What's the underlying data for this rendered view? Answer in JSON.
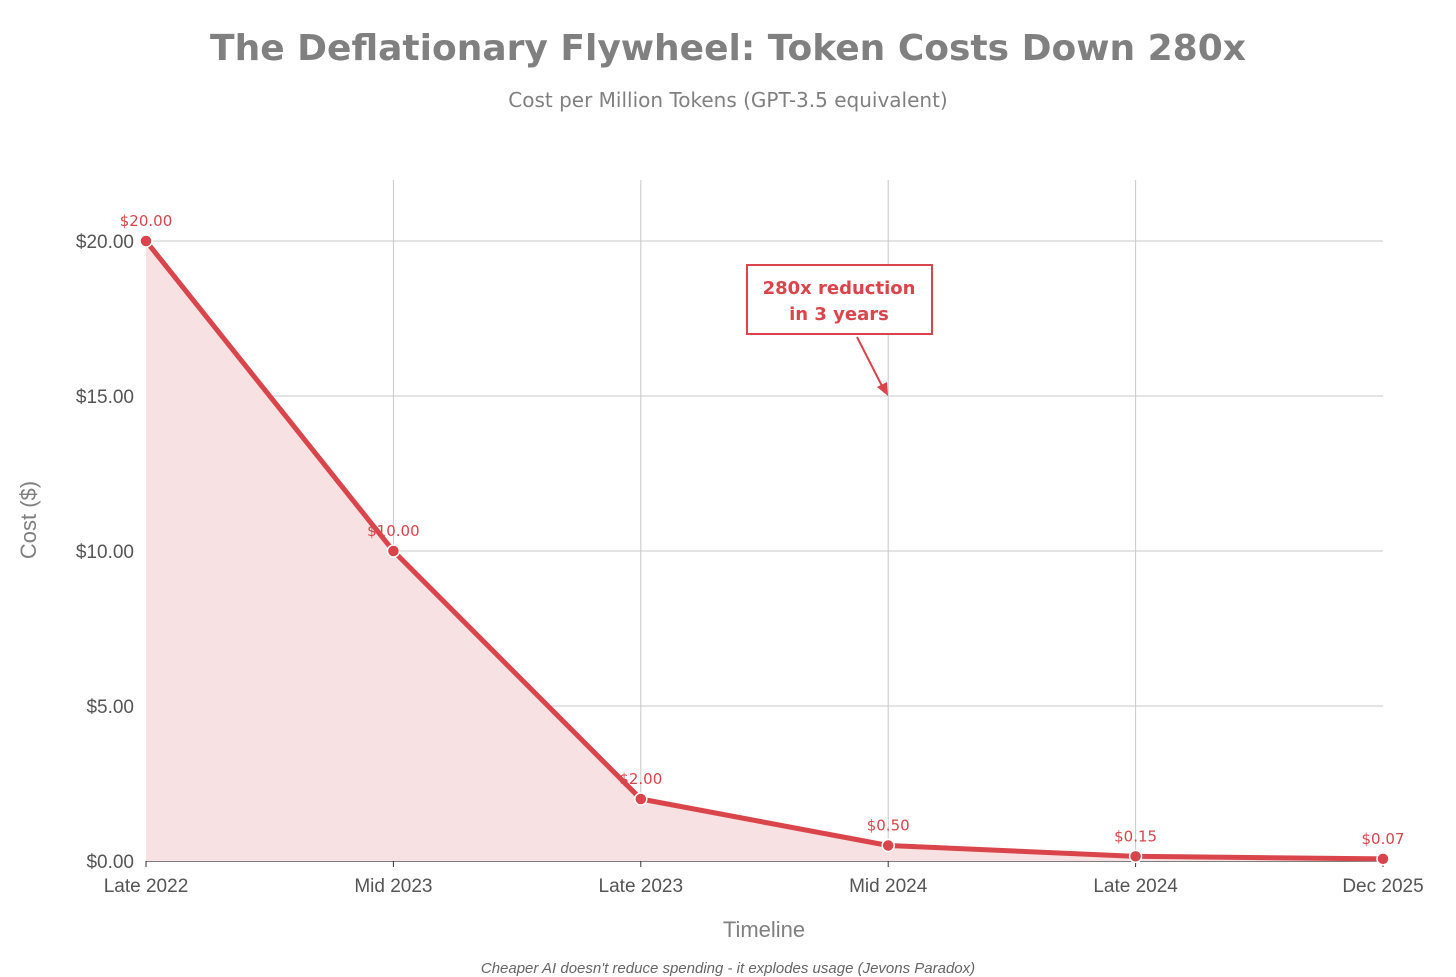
{
  "chart_data": {
    "type": "area",
    "title": "The Deflationary Flywheel: Token Costs Down 280x",
    "subtitle": "Cost per Million Tokens (GPT-3.5 equivalent)",
    "xlabel": "Timeline",
    "ylabel": "Cost ($)",
    "categories": [
      "Late 2022",
      "Mid 2023",
      "Late 2023",
      "Mid 2024",
      "Late 2024",
      "Dec 2025"
    ],
    "series": [
      {
        "values": [
          20.0,
          10.0,
          2.0,
          0.5,
          0.15,
          0.07
        ]
      }
    ],
    "data_labels": [
      "$20.00",
      "$10.00",
      "$2.00",
      "$0.50",
      "$0.15",
      "$0.07"
    ],
    "ylim": [
      0,
      22
    ],
    "yticks": [
      0,
      5,
      10,
      15,
      20
    ],
    "ytick_labels": [
      "$0.00",
      "$5.00",
      "$10.00",
      "$15.00",
      "$20.00"
    ],
    "grid": true,
    "colors": {
      "line": "#d9454a",
      "fill": "#f7e1e2",
      "grid": "#c8c8c8",
      "axis": "#333333"
    },
    "annotation": {
      "lines": [
        "280x reduction",
        "in 3 years"
      ],
      "points_to": {
        "category": "Mid 2024",
        "value": 15
      }
    },
    "footnote": "Cheaper AI doesn't reduce spending - it explodes usage (Jevons Paradox)"
  }
}
